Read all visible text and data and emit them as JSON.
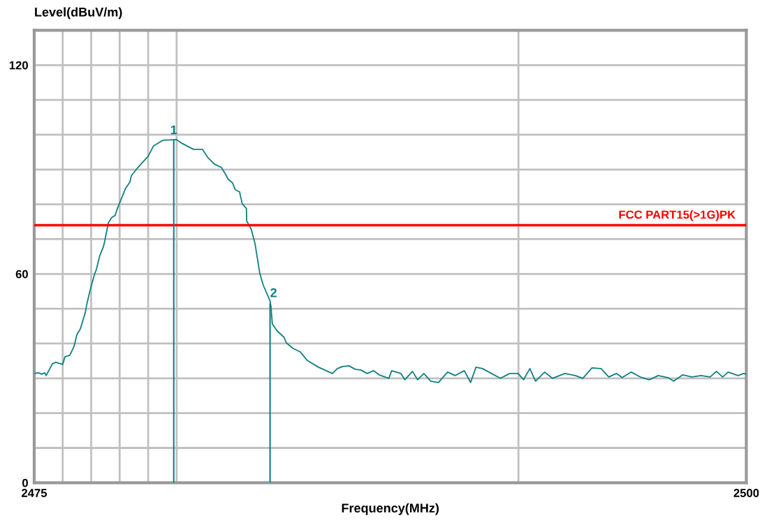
{
  "chart_data": {
    "type": "line",
    "xlabel": "Frequency(MHz)",
    "ylabel": "Level(dBuV/m)",
    "xlim": [
      2475,
      2500
    ],
    "ylim": [
      0,
      130
    ],
    "xticks": [
      2475,
      {
        "value": 2476,
        "label": null
      },
      {
        "value": 2477,
        "label": null
      },
      {
        "value": 2478,
        "label": null
      },
      {
        "value": 2479,
        "label": null
      },
      {
        "value": 2480,
        "label": null
      },
      {
        "value": 2492,
        "label": null
      },
      2500
    ],
    "yticks": [
      0,
      {
        "value": 10,
        "label": null
      },
      {
        "value": 20,
        "label": null
      },
      {
        "value": 30,
        "label": null
      },
      {
        "value": 40,
        "label": null
      },
      {
        "value": 50,
        "label": null
      },
      60,
      {
        "value": 70,
        "label": null
      },
      {
        "value": 80,
        "label": null
      },
      {
        "value": 90,
        "label": null
      },
      {
        "value": 100,
        "label": null
      },
      {
        "value": 110,
        "label": null
      },
      120
    ],
    "grid": true,
    "legend": false,
    "marker": "none",
    "line_style": "solid",
    "ref_lines": [
      {
        "axis": "y",
        "value": 74,
        "label": "FCC PART15(>1G)PK",
        "color": "#ff0000"
      }
    ],
    "annotations": [
      {
        "text": "1",
        "x": 2479.9,
        "y": 98.4
      },
      {
        "text": "2",
        "x": 2483.28,
        "y": 51.6
      }
    ],
    "series": [
      {
        "color": "#108080",
        "x": [
          2475,
          2475.15,
          2475.27,
          2475.37,
          2475.42,
          2475.64,
          2475.76,
          2476.0,
          2476.08,
          2476.25,
          2476.4,
          2476.5,
          2476.62,
          2476.79,
          2476.86,
          2476.99,
          2477.13,
          2477.18,
          2477.3,
          2477.43,
          2477.48,
          2477.6,
          2477.72,
          2477.84,
          2477.92,
          2478.09,
          2478.21,
          2478.36,
          2478.41,
          2478.6,
          2478.75,
          2479.0,
          2479.19,
          2479.51,
          2480.0,
          2480.17,
          2480.59,
          2480.91,
          2481.08,
          2481.32,
          2481.57,
          2481.72,
          2481.81,
          2481.96,
          2482.06,
          2482.21,
          2482.3,
          2482.45,
          2482.46,
          2482.62,
          2482.75,
          2482.92,
          2483.04,
          2483.28,
          2483.31,
          2483.36,
          2483.53,
          2483.77,
          2483.85,
          2484.09,
          2484.34,
          2484.58,
          2484.98,
          2485.47,
          2485.64,
          2485.83,
          2486.05,
          2486.27,
          2486.47,
          2486.69,
          2486.91,
          2487.11,
          2487.45,
          2487.55,
          2487.87,
          2488.01,
          2488.28,
          2488.46,
          2488.68,
          2488.92,
          2489.19,
          2489.51,
          2489.78,
          2490.1,
          2490.32,
          2490.51,
          2490.74,
          2491.05,
          2491.37,
          2491.69,
          2491.99,
          2492.18,
          2492.4,
          2492.6,
          2492.92,
          2493.19,
          2493.63,
          2494.0,
          2494.26,
          2494.58,
          2494.9,
          2495.17,
          2495.44,
          2495.64,
          2495.96,
          2496.27,
          2496.59,
          2496.91,
          2497.25,
          2497.45,
          2497.77,
          2498.09,
          2498.41,
          2498.73,
          2498.95,
          2499.17,
          2499.36,
          2499.71,
          2499.9,
          2500
        ],
        "values": [
          31.4,
          31.6,
          31.2,
          31.6,
          30.8,
          34.2,
          34.6,
          34.0,
          36.2,
          36.6,
          39.2,
          42.6,
          44.2,
          48.8,
          51.8,
          56.2,
          60.2,
          61.2,
          65.2,
          67.8,
          69.6,
          74.6,
          76.2,
          76.8,
          78.8,
          82.2,
          84.6,
          86.4,
          88.2,
          90.2,
          91.6,
          93.8,
          96.8,
          98.4,
          98.6,
          97.6,
          95.8,
          95.8,
          93.6,
          91.6,
          90.6,
          88.6,
          87.2,
          86.2,
          84.2,
          83.6,
          80.2,
          78.8,
          75.2,
          72.8,
          68.8,
          60.2,
          56.8,
          52.2,
          50.8,
          45.6,
          43.6,
          41.8,
          40.2,
          38.6,
          37.6,
          35.2,
          33.2,
          31.4,
          32.8,
          33.4,
          33.6,
          32.6,
          32.4,
          31.4,
          32.2,
          31.0,
          30.0,
          32.2,
          31.4,
          29.6,
          32.0,
          29.6,
          31.4,
          29.2,
          28.8,
          31.8,
          30.8,
          32.2,
          28.8,
          33.2,
          32.8,
          31.4,
          30.0,
          31.4,
          31.4,
          29.6,
          32.8,
          29.2,
          31.8,
          30.0,
          31.4,
          30.8,
          30.0,
          33.0,
          32.8,
          30.4,
          31.4,
          30.2,
          31.8,
          30.4,
          29.6,
          30.8,
          30.2,
          29.2,
          31.0,
          30.4,
          30.8,
          30.4,
          32.0,
          30.4,
          31.8,
          30.8,
          31.4,
          31.2
        ]
      }
    ]
  }
}
